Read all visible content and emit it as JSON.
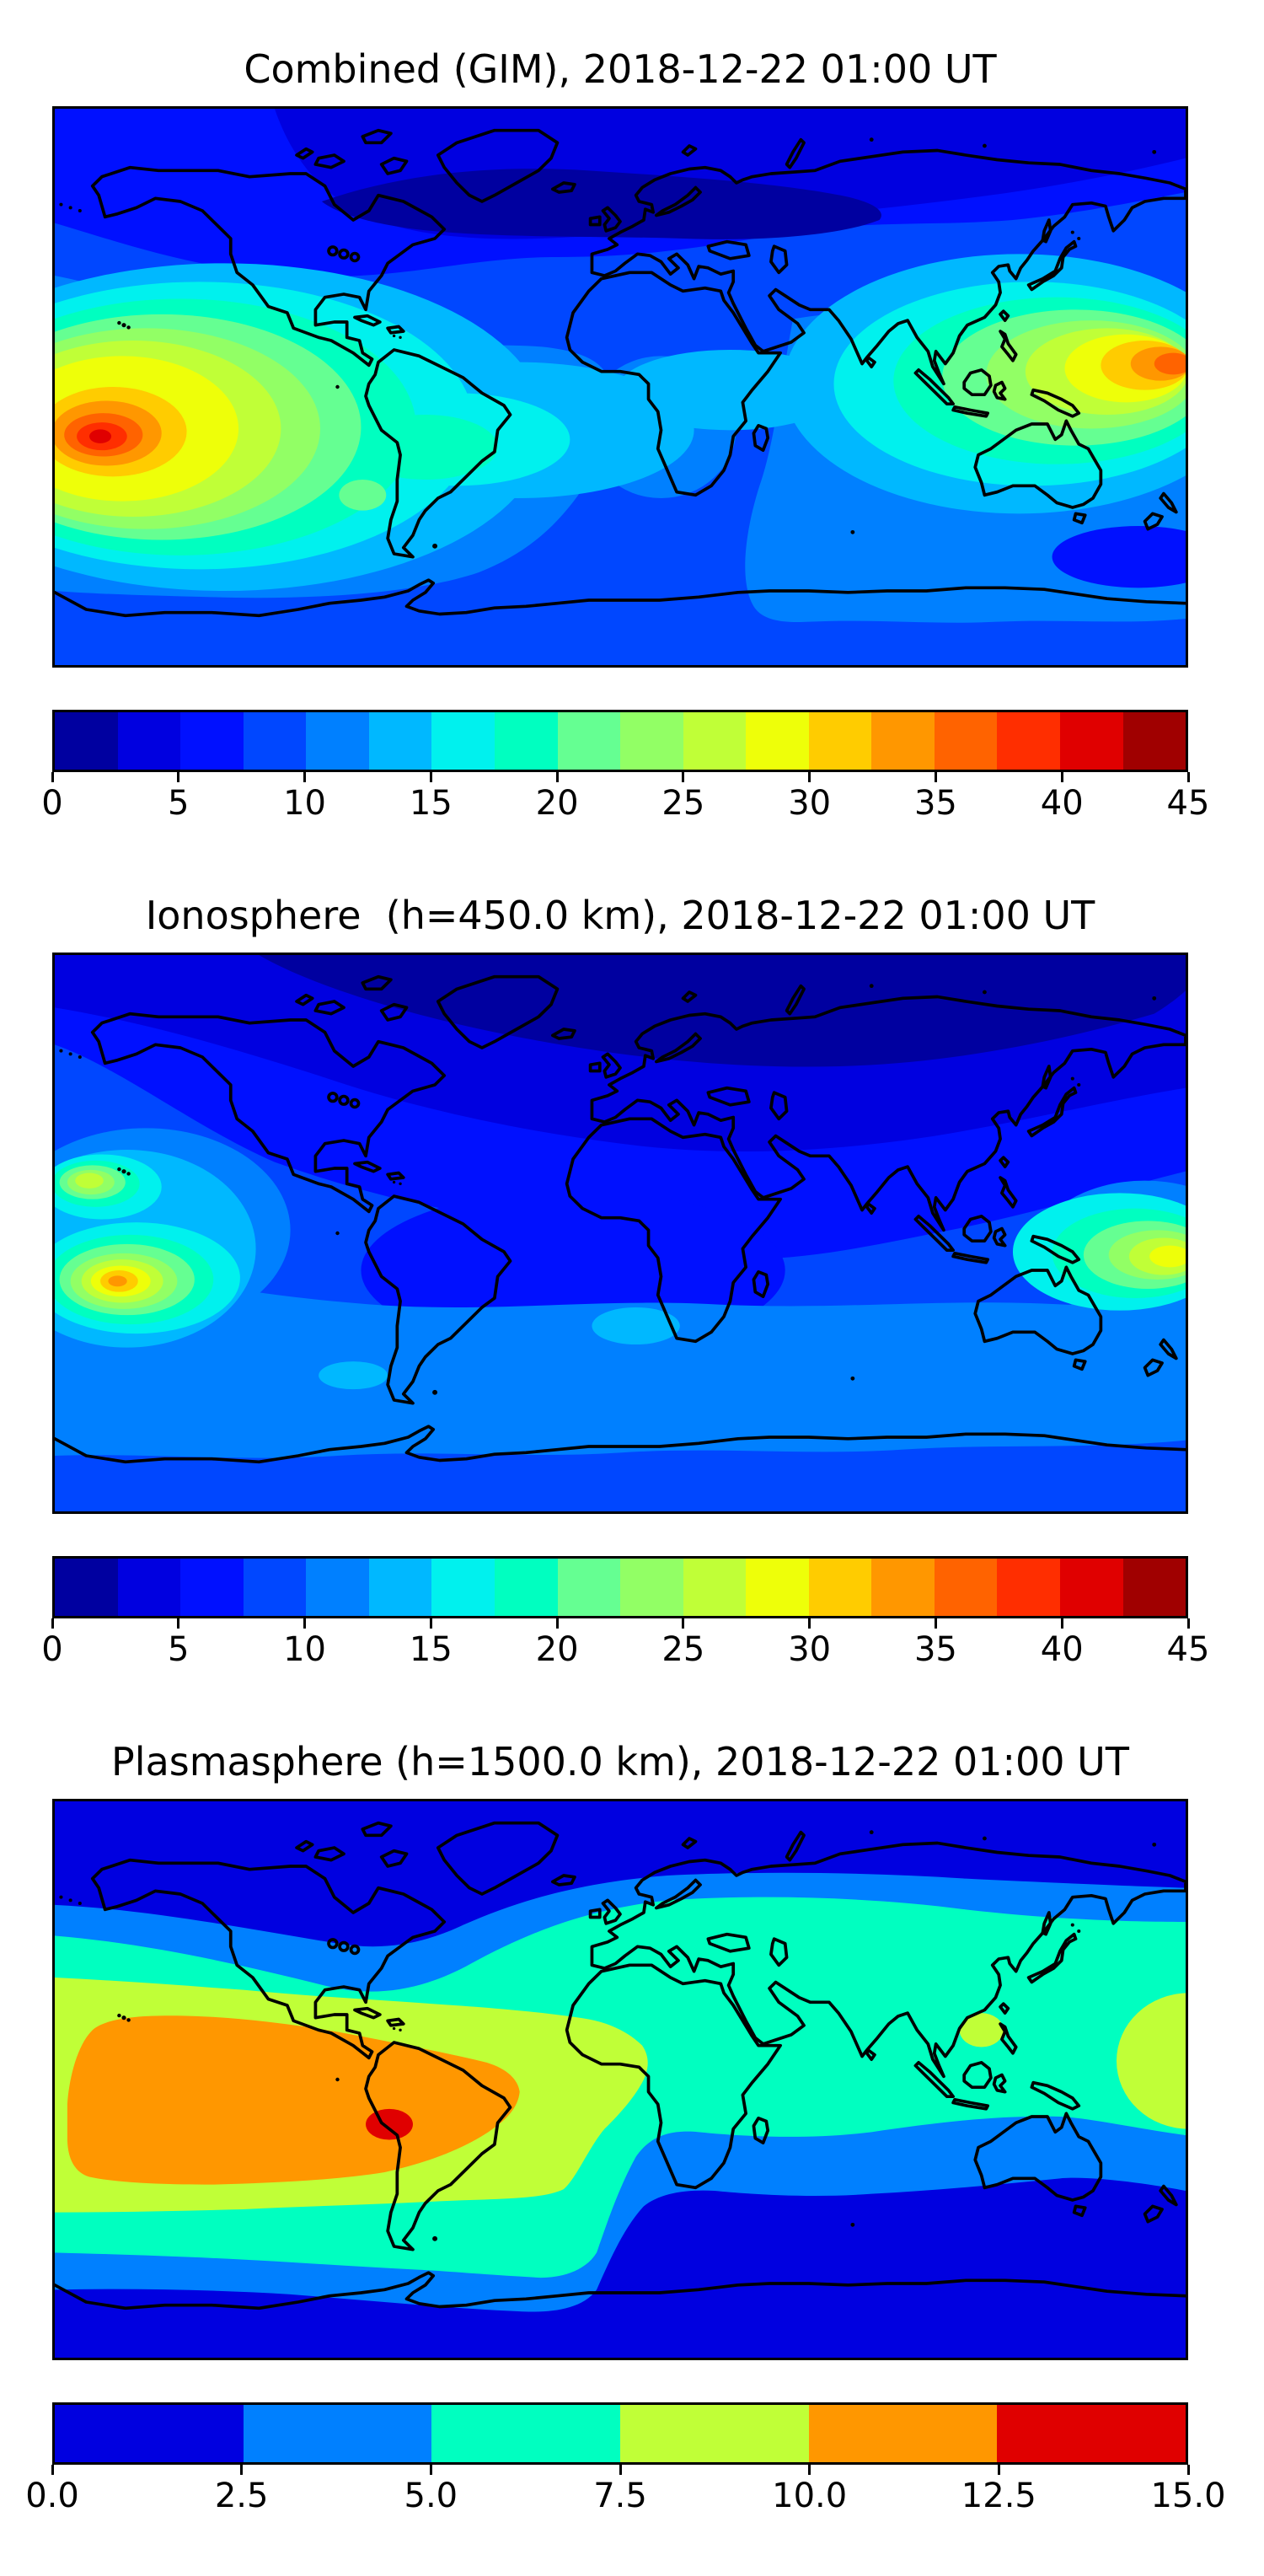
{
  "figure": {
    "background": "#ffffff",
    "text_color": "#000000",
    "coastline_color": "#000000",
    "projection": "equirectangular world map",
    "lon_range": [
      -180,
      180
    ],
    "lat_range": [
      -90,
      90
    ]
  },
  "panels": [
    {
      "title": "Combined (GIM), 2018-12-22 01:00 UT",
      "colorbar": {
        "orientation": "horizontal",
        "min": 0,
        "max": 45,
        "contour_step": 2.5,
        "tick_labels": [
          "0",
          "5",
          "10",
          "15",
          "20",
          "25",
          "30",
          "35",
          "40",
          "45"
        ],
        "colors": [
          "#0000A0",
          "#0000E0",
          "#0010FF",
          "#0047FF",
          "#0080FF",
          "#00B8FF",
          "#00F1EE",
          "#00FFC0",
          "#65FF92",
          "#92FF65",
          "#C0FF37",
          "#EEFF09",
          "#FFCC00",
          "#FF9700",
          "#FF6300",
          "#FF2E00",
          "#E00000",
          "#A00000"
        ]
      }
    },
    {
      "title": "Ionosphere  (h=450.0 km), 2018-12-22 01:00 UT",
      "colorbar": {
        "orientation": "horizontal",
        "min": 0,
        "max": 45,
        "contour_step": 2.5,
        "tick_labels": [
          "0",
          "5",
          "10",
          "15",
          "20",
          "25",
          "30",
          "35",
          "40",
          "45"
        ],
        "colors": [
          "#0000A0",
          "#0000E0",
          "#0010FF",
          "#0047FF",
          "#0080FF",
          "#00B8FF",
          "#00F1EE",
          "#00FFC0",
          "#65FF92",
          "#92FF65",
          "#C0FF37",
          "#EEFF09",
          "#FFCC00",
          "#FF9700",
          "#FF6300",
          "#FF2E00",
          "#E00000",
          "#A00000"
        ]
      }
    },
    {
      "title": "Plasmasphere (h=1500.0 km), 2018-12-22 01:00 UT",
      "colorbar": {
        "orientation": "horizontal",
        "min": 0,
        "max": 15,
        "contour_step": 2.5,
        "tick_labels": [
          "0.0",
          "2.5",
          "5.0",
          "7.5",
          "10.0",
          "12.5",
          "15.0"
        ],
        "colors": [
          "#0000E0",
          "#0080FF",
          "#00FFC0",
          "#C0FF37",
          "#FF9700",
          "#E00000"
        ]
      }
    }
  ],
  "chart_data": [
    {
      "type": "heatmap",
      "title": "Combined (GIM), 2018-12-22 01:00 UT",
      "colormap": "jet (discrete, 18 levels)",
      "xlabel": "longitude -180..180 (no axis ticks shown)",
      "ylabel": "latitude -90..90 (no axis ticks shown)",
      "value_range": [
        0,
        45
      ],
      "legend_position": "horizontal colorbar below map",
      "features": [
        {
          "label": "primary peak, South Pacific west of South America",
          "lon": -164,
          "lat": -16,
          "value": 43
        },
        {
          "label": "broad yellow enhancement around primary peak",
          "lon_span": [
            -180,
            -115
          ],
          "lat_span": [
            -30,
            0
          ],
          "value": "30-35"
        },
        {
          "label": "secondary peak at east map edge near Melanesia",
          "lon": 177,
          "lat": -12,
          "value": 38
        },
        {
          "label": "cyan equatorial band across Pacific / Indonesia",
          "value": "15-22"
        },
        {
          "label": "high-latitude minimum over northern Canada / Siberia",
          "value": "2.5-5"
        },
        {
          "label": "southern mid-latitude background",
          "value": "7.5-12.5"
        }
      ]
    },
    {
      "type": "heatmap",
      "title": "Ionosphere  (h=450.0 km), 2018-12-22 01:00 UT",
      "colormap": "jet (discrete, 18 levels)",
      "xlabel": "longitude -180..180 (no axis ticks shown)",
      "ylabel": "latitude -90..90 (no axis ticks shown)",
      "value_range": [
        0,
        45
      ],
      "legend_position": "horizontal colorbar below map",
      "features": [
        {
          "label": "peak west of map edge, central Pacific south",
          "lon": -169,
          "lat": -16,
          "value": 32
        },
        {
          "label": "smaller peak near Hawaii latitude",
          "lon": -172,
          "lat": 17,
          "value": 27
        },
        {
          "label": "peak at east map edge near Fiji",
          "lon": 178,
          "lat": -8,
          "value": 30
        },
        {
          "label": "dark minimum covering most of northern hemisphere and South America / Atlantic",
          "value": "0-5"
        },
        {
          "label": "southern ocean band",
          "value": "7.5-12.5"
        }
      ]
    },
    {
      "type": "heatmap",
      "title": "Plasmasphere (h=1500.0 km), 2018-12-22 01:00 UT",
      "colormap": "jet (discrete, 6 levels)",
      "xlabel": "longitude -180..180 (no axis ticks shown)",
      "ylabel": "latitude -90..90 (no axis ticks shown)",
      "value_range": [
        0,
        15
      ],
      "legend_position": "horizontal colorbar below map",
      "features": [
        {
          "label": "red core over Peru / Bolivia",
          "lon": -73,
          "lat": -15,
          "value": 14
        },
        {
          "label": "orange band SE Pacific through Brazil",
          "lon_span": [
            -176,
            -32
          ],
          "lat_span": [
            -35,
            -5
          ],
          "value": "10-12.5"
        },
        {
          "label": "yellow-green band around orange, to Gulf of Guinea; spots near Philippines and east edge",
          "value": "7.5-10"
        },
        {
          "label": "turquoise mid/low-latitude band over Africa, Asia, Australia",
          "value": "5-7.5"
        },
        {
          "label": "azure transition bands",
          "value": "2.5-5"
        },
        {
          "label": "dark blue polar bands north and south",
          "value": "0-2.5"
        }
      ]
    }
  ]
}
